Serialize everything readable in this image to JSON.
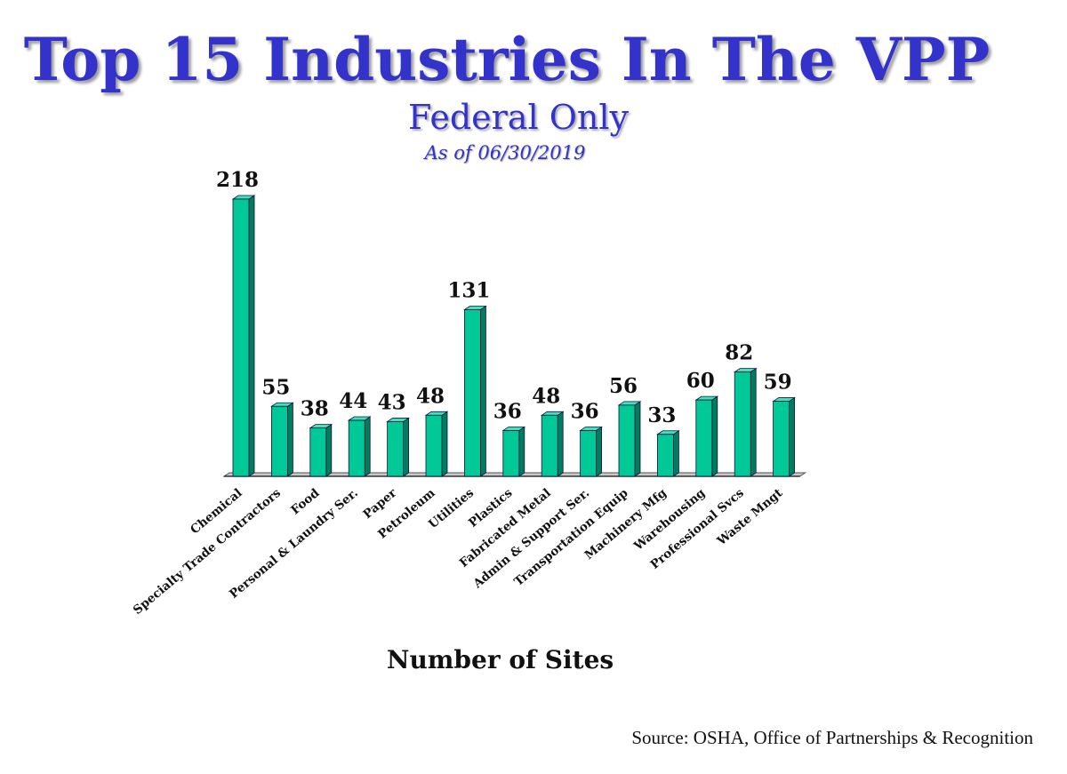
{
  "header": {
    "title": "Top 15 Industries In The VPP",
    "subtitle": "Federal Only",
    "as_of": "As of 06/30/2019"
  },
  "footer": {
    "source": "Source: OSHA, Office of Partnerships & Recognition"
  },
  "colors": {
    "bar_front": "#00c896",
    "bar_side": "#007d5c",
    "bar_top": "#3fe3b6",
    "title": "#3333cc"
  },
  "chart_data": {
    "type": "bar",
    "title": "Top 15 Industries In The VPP",
    "subtitle": "Federal Only",
    "xlabel": "Number of Sites",
    "ylabel": "",
    "ylim": [
      0,
      218
    ],
    "grid": false,
    "legend": "none",
    "categories": [
      "Chemical",
      "Specialty Trade Contractors",
      "Food",
      "Personal & Laundry Ser.",
      "Paper",
      "Petroleum",
      "Utilities",
      "Plastics",
      "Fabricated Metal",
      "Admin & Support Ser.",
      "Transportation Equip",
      "Machinery Mfg",
      "Warehousing",
      "Professional Svcs",
      "Waste Mngt"
    ],
    "values": [
      218,
      55,
      38,
      44,
      43,
      48,
      131,
      36,
      48,
      36,
      56,
      33,
      60,
      82,
      59
    ]
  }
}
